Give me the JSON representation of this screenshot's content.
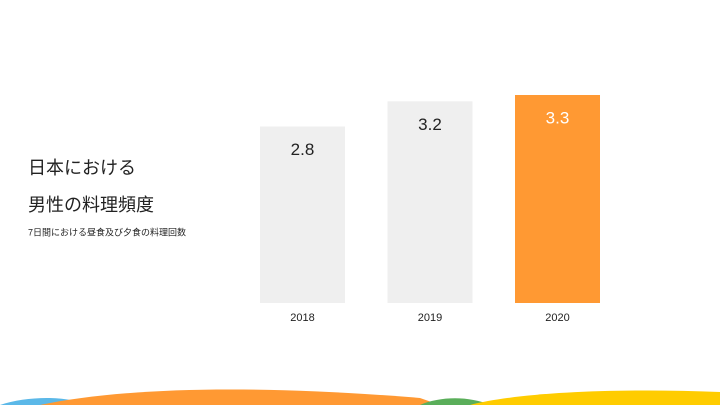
{
  "chart_data": {
    "type": "bar",
    "title": [
      "日本における",
      "男性の料理頻度"
    ],
    "subtitle": "7日間における昼食及び夕食の料理回数",
    "categories": [
      "2018",
      "2019",
      "2020"
    ],
    "values": [
      2.8,
      3.2,
      3.3
    ],
    "colors": [
      "#efefef",
      "#efefef",
      "#ff9933"
    ]
  }
}
